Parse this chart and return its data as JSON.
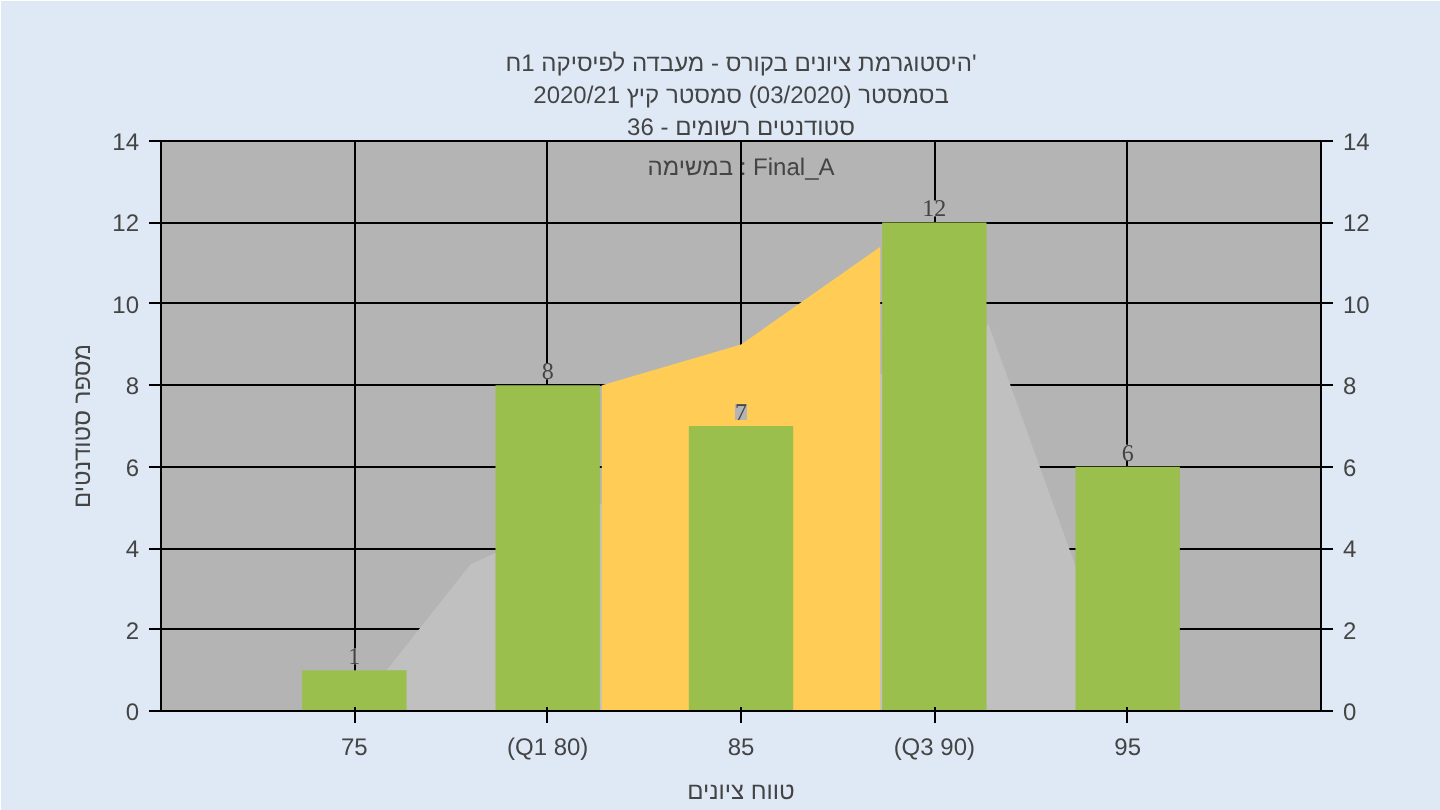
{
  "chart_data": {
    "type": "bar",
    "title": "היסטוגרמת ציונים בקורס - מעבדה לפיסיקה 1ח'",
    "subtitle": "בסמסטר (03/2020) סמסטר קיץ 2020/21",
    "xlabel": "טווח ציונים",
    "ylabel": "מספר סטודנטים",
    "annotations": [
      "סטודנטים רשומים - 36",
      "במשימה : Final_A"
    ],
    "x": [
      75,
      80,
      85,
      90,
      95
    ],
    "series": [
      {
        "type": "area",
        "color": "#c0c0c0",
        "x": [
          75,
          78,
          91.4,
          95
        ],
        "values": [
          0,
          3.6,
          9.5,
          0
        ]
      },
      {
        "type": "area",
        "color": "#ffcc55",
        "x": [
          81.4,
          85,
          88.6
        ],
        "values": [
          8,
          9,
          11.4
        ]
      },
      {
        "color": "#9bbf4c",
        "values": [
          1,
          8,
          7,
          12,
          6
        ],
        "value_labels": [
          "1",
          "8",
          "7",
          "12",
          "6"
        ]
      }
    ],
    "xlim": [
      70,
      100
    ],
    "xticks": [
      75,
      {
        "value": 80,
        "label": "(Q1 80)"
      },
      85,
      {
        "value": 90,
        "label": "(Q3 90)"
      },
      95
    ],
    "ylim": [
      0,
      14
    ],
    "yticks": [
      0,
      2,
      4,
      6,
      8,
      10,
      12,
      14
    ],
    "y2lim": [
      0,
      14
    ],
    "y2ticks": [
      0,
      2,
      4,
      6,
      8,
      10,
      12,
      14
    ],
    "grid": true
  }
}
